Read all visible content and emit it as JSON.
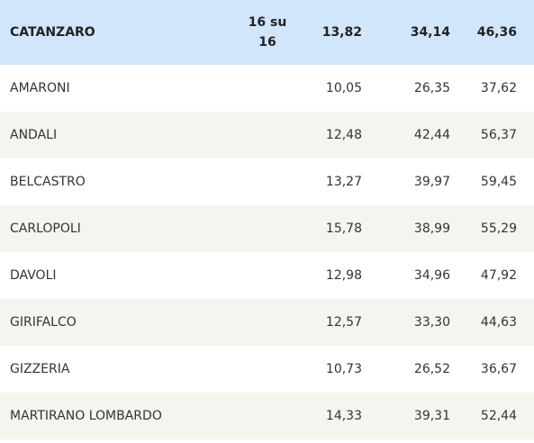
{
  "table": {
    "header": [
      "CATANZARO",
      "16 su 16",
      "13,82",
      "34,14",
      "46,36"
    ],
    "rows": [
      [
        "AMARONI",
        "",
        "10,05",
        "26,35",
        "37,62"
      ],
      [
        "ANDALI",
        "",
        "12,48",
        "42,44",
        "56,37"
      ],
      [
        "BELCASTRO",
        "",
        "13,27",
        "39,97",
        "59,45"
      ],
      [
        "CARLOPOLI",
        "",
        "15,78",
        "38,99",
        "55,29"
      ],
      [
        "DAVOLI",
        "",
        "12,98",
        "34,96",
        "47,92"
      ],
      [
        "GIRIFALCO",
        "",
        "12,57",
        "33,30",
        "44,63"
      ],
      [
        "GIZZERIA",
        "",
        "10,73",
        "26,52",
        "36,67"
      ],
      [
        "MARTIRANO LOMBARDO",
        "",
        "14,33",
        "39,31",
        "52,44"
      ]
    ]
  }
}
